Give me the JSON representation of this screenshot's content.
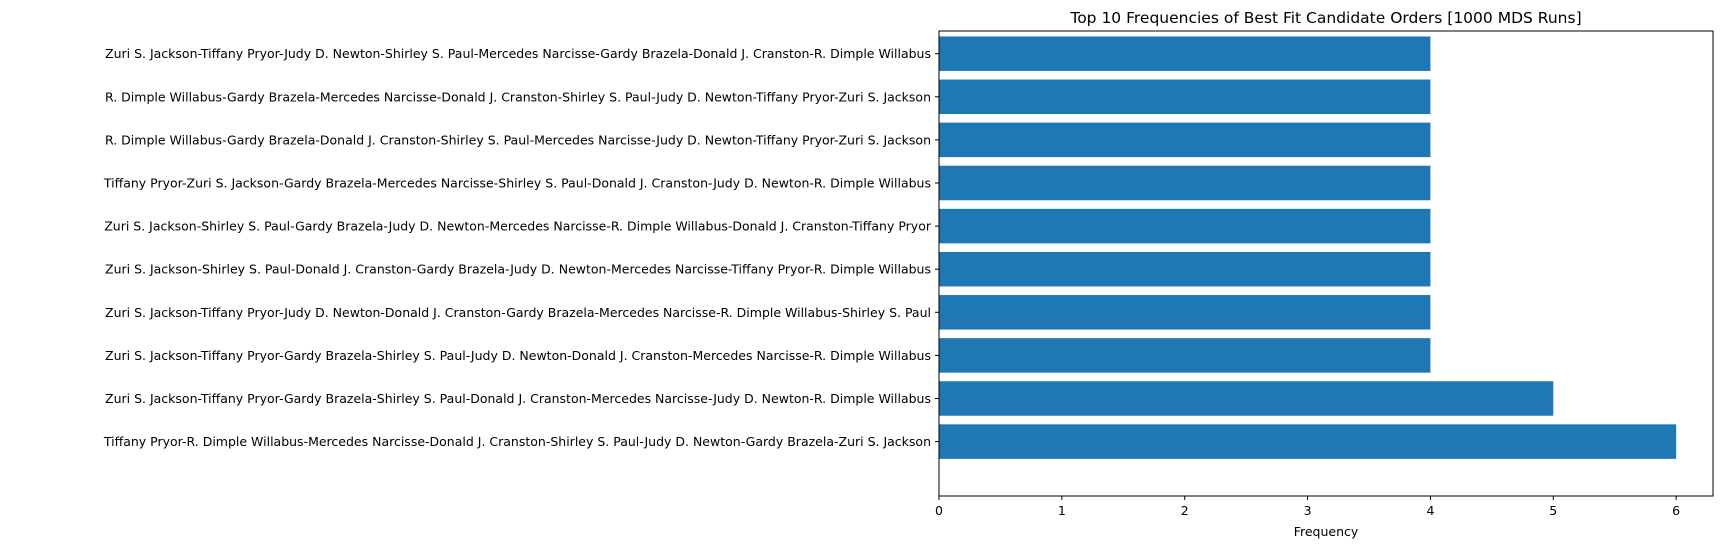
{
  "chart_data": {
    "type": "bar",
    "orientation": "horizontal",
    "title": "Top 10 Frequencies of Best Fit Candidate Orders [1000 MDS Runs]",
    "xlabel": "Frequency",
    "ylabel": "",
    "xlim": [
      0,
      6.3
    ],
    "xticks": [
      0,
      1,
      2,
      3,
      4,
      5,
      6
    ],
    "grid": false,
    "bar_color": "#1f77b4",
    "categories": [
      "Zuri S. Jackson-Tiffany Pryor-Judy D. Newton-Shirley S. Paul-Mercedes Narcisse-Gardy Brazela-Donald J. Cranston-R. Dimple Willabus",
      "R. Dimple Willabus-Gardy Brazela-Mercedes Narcisse-Donald J. Cranston-Shirley S. Paul-Judy D. Newton-Tiffany Pryor-Zuri S. Jackson",
      "R. Dimple Willabus-Gardy Brazela-Donald J. Cranston-Shirley S. Paul-Mercedes Narcisse-Judy D. Newton-Tiffany Pryor-Zuri S. Jackson",
      "Tiffany Pryor-Zuri S. Jackson-Gardy Brazela-Mercedes Narcisse-Shirley S. Paul-Donald J. Cranston-Judy D. Newton-R. Dimple Willabus",
      "Zuri S. Jackson-Shirley S. Paul-Gardy Brazela-Judy D. Newton-Mercedes Narcisse-R. Dimple Willabus-Donald J. Cranston-Tiffany Pryor",
      "Zuri S. Jackson-Shirley S. Paul-Donald J. Cranston-Gardy Brazela-Judy D. Newton-Mercedes Narcisse-Tiffany Pryor-R. Dimple Willabus",
      "Zuri S. Jackson-Tiffany Pryor-Judy D. Newton-Donald J. Cranston-Gardy Brazela-Mercedes Narcisse-R. Dimple Willabus-Shirley S. Paul",
      "Zuri S. Jackson-Tiffany Pryor-Gardy Brazela-Shirley S. Paul-Judy D. Newton-Donald J. Cranston-Mercedes Narcisse-R. Dimple Willabus",
      "Zuri S. Jackson-Tiffany Pryor-Gardy Brazela-Shirley S. Paul-Donald J. Cranston-Mercedes Narcisse-Judy D. Newton-R. Dimple Willabus",
      "Tiffany Pryor-R. Dimple Willabus-Mercedes Narcisse-Donald J. Cranston-Shirley S. Paul-Judy D. Newton-Gardy Brazela-Zuri S. Jackson"
    ],
    "values": [
      4,
      4,
      4,
      4,
      4,
      4,
      4,
      4,
      5,
      6
    ]
  }
}
